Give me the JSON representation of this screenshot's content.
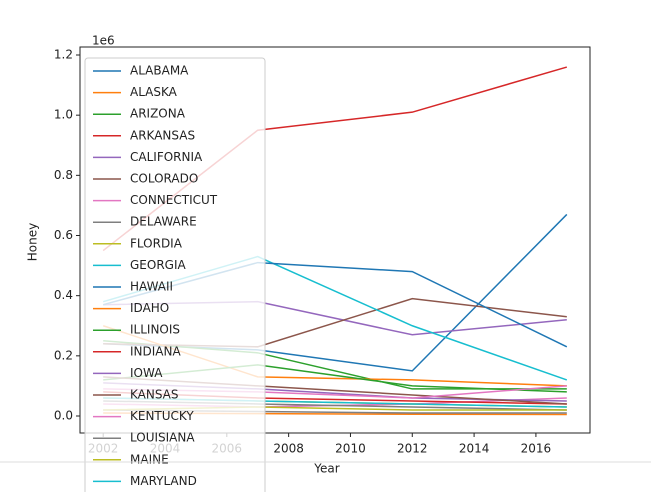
{
  "chart_data": {
    "type": "line",
    "y_offset_label": "1e6",
    "xlabel": "Year",
    "ylabel": "Honey",
    "x": [
      2002,
      2007,
      2012,
      2017
    ],
    "xlim": [
      2001.25,
      2017.75
    ],
    "xticks": [
      2002,
      2004,
      2006,
      2008,
      2010,
      2012,
      2014,
      2016
    ],
    "ylim": [
      -56500,
      1226600
    ],
    "yticks": [
      {
        "value": 0,
        "label": "0.0"
      },
      {
        "value": 200000,
        "label": "0.2"
      },
      {
        "value": 400000,
        "label": "0.4"
      },
      {
        "value": 600000,
        "label": "0.6"
      },
      {
        "value": 800000,
        "label": "0.8"
      },
      {
        "value": 1000000,
        "label": "1.0"
      },
      {
        "value": 1200000,
        "label": "1.2"
      }
    ],
    "legend": "upper left",
    "series": [
      {
        "name": "ALABAMA",
        "color": "#1f77b4",
        "values": [
          240000,
          220000,
          150000,
          670000
        ]
      },
      {
        "name": "ALASKA",
        "color": "#ff7f0e",
        "values": [
          10000,
          8000,
          6000,
          5000
        ]
      },
      {
        "name": "ARIZONA",
        "color": "#2ca02c",
        "values": [
          250000,
          210000,
          90000,
          90000
        ]
      },
      {
        "name": "ARKANSAS",
        "color": "#d62728",
        "values": [
          550000,
          950000,
          1010000,
          1160000
        ]
      },
      {
        "name": "CALIFORNIA",
        "color": "#9467bd",
        "values": [
          370000,
          380000,
          270000,
          320000
        ]
      },
      {
        "name": "COLORADO",
        "color": "#8c564b",
        "values": [
          240000,
          230000,
          390000,
          330000
        ]
      },
      {
        "name": "CONNECTICUT",
        "color": "#e377c2",
        "values": [
          40000,
          30000,
          40000,
          60000
        ]
      },
      {
        "name": "DELAWARE",
        "color": "#7f7f7f",
        "values": [
          20000,
          15000,
          10000,
          10000
        ]
      },
      {
        "name": "FLORDIA",
        "color": "#bcbd22",
        "values": [
          60000,
          50000,
          40000,
          30000
        ]
      },
      {
        "name": "GEORGIA",
        "color": "#17becf",
        "values": [
          380000,
          530000,
          300000,
          120000
        ]
      },
      {
        "name": "HAWAII",
        "color": "#1f77b4",
        "values": [
          370000,
          510000,
          480000,
          230000
        ]
      },
      {
        "name": "IDAHO",
        "color": "#ff7f0e",
        "values": [
          300000,
          130000,
          120000,
          100000
        ]
      },
      {
        "name": "ILLINOIS",
        "color": "#2ca02c",
        "values": [
          120000,
          170000,
          100000,
          80000
        ]
      },
      {
        "name": "INDIANA",
        "color": "#d62728",
        "values": [
          80000,
          60000,
          50000,
          40000
        ]
      },
      {
        "name": "IOWA",
        "color": "#9467bd",
        "values": [
          110000,
          90000,
          60000,
          50000
        ]
      },
      {
        "name": "KANSAS",
        "color": "#8c564b",
        "values": [
          130000,
          100000,
          70000,
          40000
        ]
      },
      {
        "name": "KENTUCKY",
        "color": "#e377c2",
        "values": [
          90000,
          80000,
          60000,
          100000
        ]
      },
      {
        "name": "LOUISIANA",
        "color": "#7f7f7f",
        "values": [
          50000,
          40000,
          30000,
          20000
        ]
      },
      {
        "name": "MAINE",
        "color": "#bcbd22",
        "values": [
          20000,
          30000,
          20000,
          20000
        ]
      },
      {
        "name": "MARYLAND",
        "color": "#17becf",
        "values": [
          60000,
          50000,
          40000,
          30000
        ]
      }
    ]
  }
}
